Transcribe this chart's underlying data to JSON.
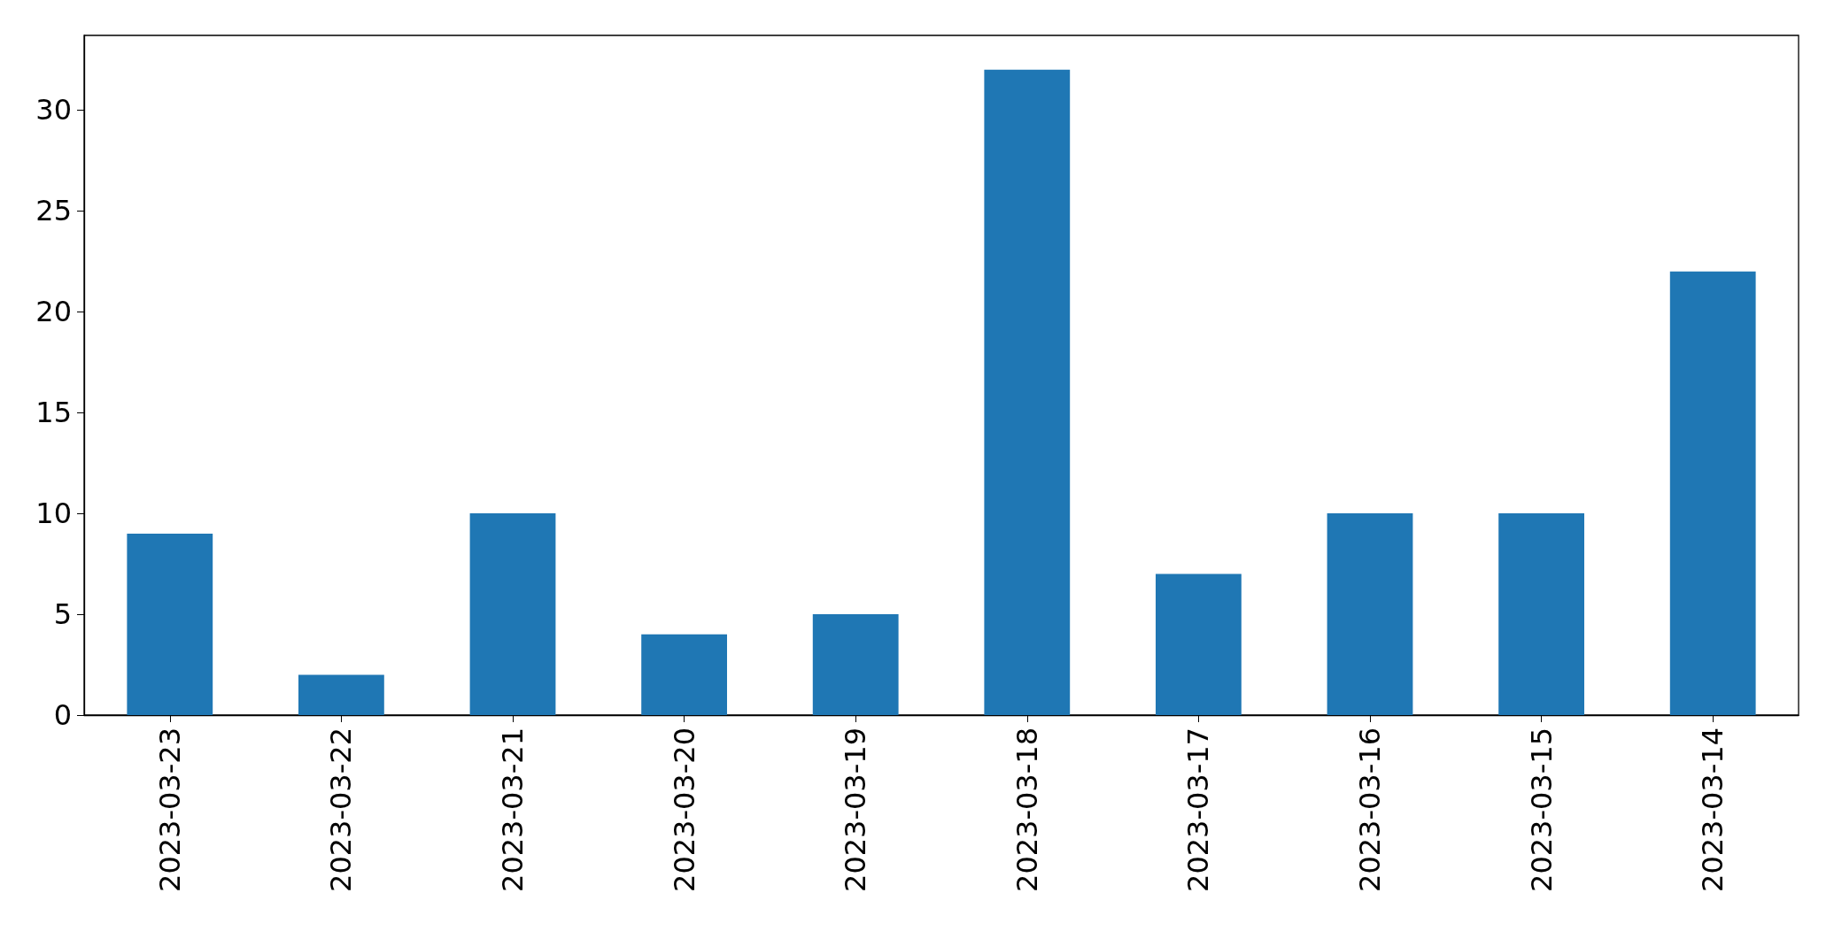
{
  "chart_data": {
    "type": "bar",
    "categories": [
      "2023-03-23",
      "2023-03-22",
      "2023-03-21",
      "2023-03-20",
      "2023-03-19",
      "2023-03-18",
      "2023-03-17",
      "2023-03-16",
      "2023-03-15",
      "2023-03-14"
    ],
    "values": [
      9,
      2,
      10,
      4,
      5,
      32,
      7,
      10,
      10,
      22
    ],
    "color": "#1f77b4",
    "ylim": [
      0,
      33.7
    ],
    "yticks": [
      0,
      5,
      10,
      15,
      20,
      25,
      30
    ]
  }
}
